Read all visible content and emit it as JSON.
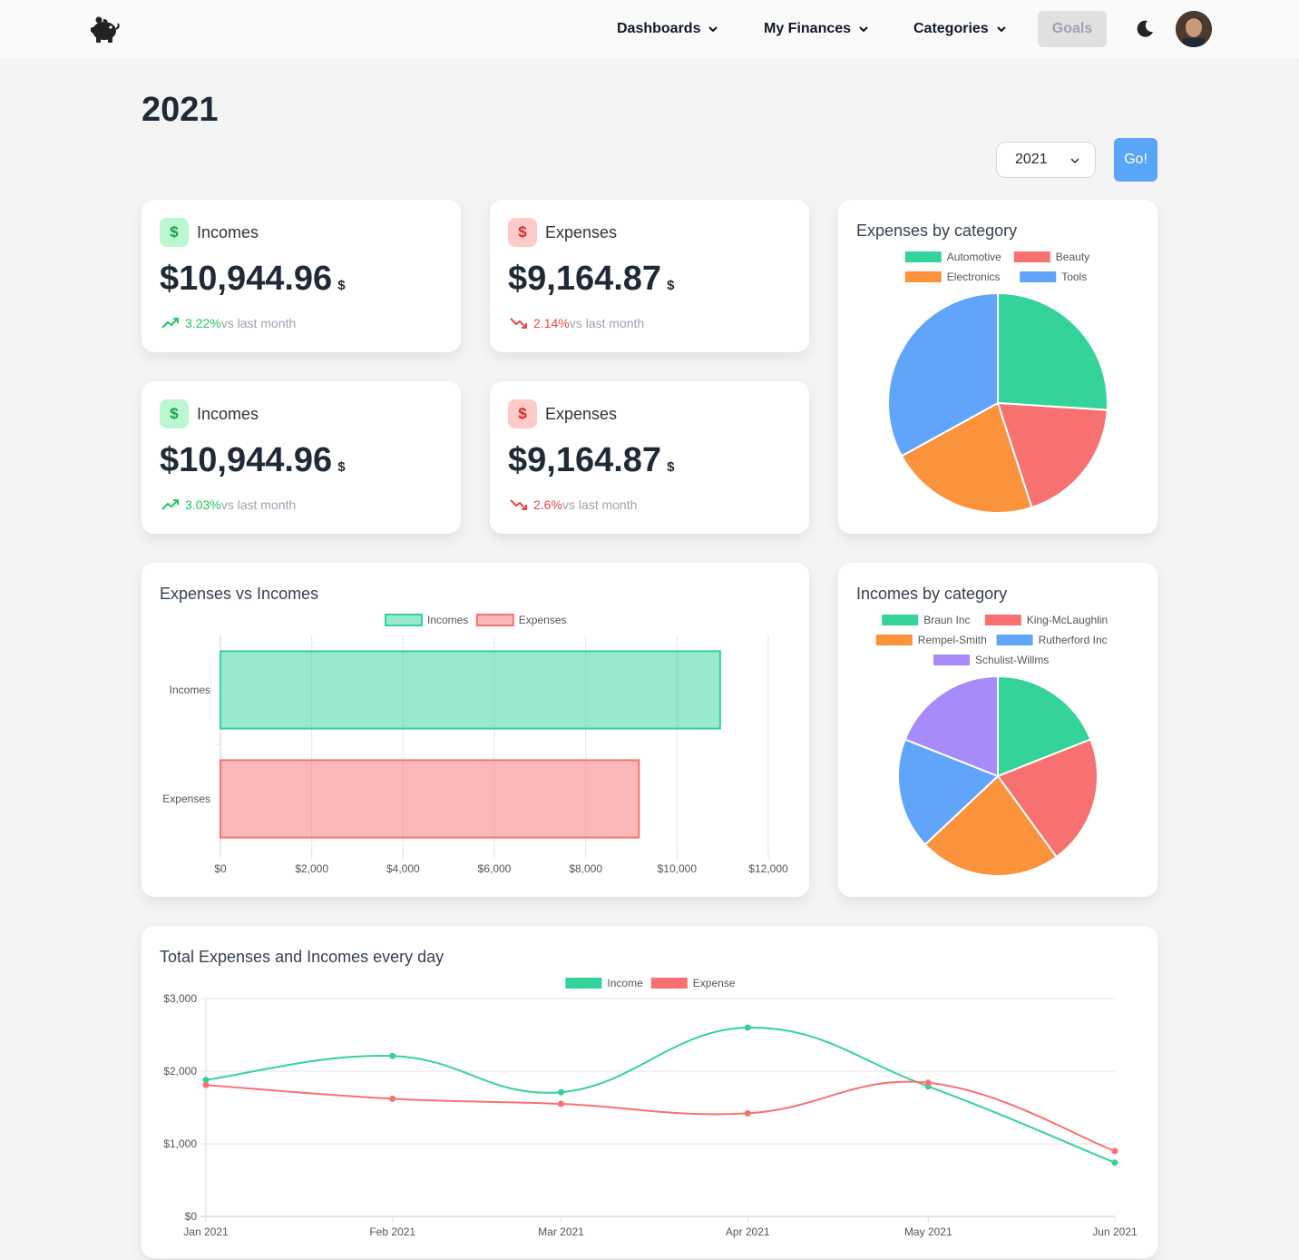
{
  "nav": {
    "logo_icon": "piggy-bank-icon",
    "items": [
      {
        "label": "Dashboards"
      },
      {
        "label": "My Finances"
      },
      {
        "label": "Categories"
      }
    ],
    "goals_label": "Goals",
    "theme_icon": "moon-icon"
  },
  "page": {
    "title": "2021",
    "year_select_value": "2021",
    "go_label": "Go!"
  },
  "stats": [
    {
      "label": "Incomes",
      "value": "$10,944.96",
      "unit": "$",
      "trend": "3.22%",
      "suffix": "vs last month",
      "direction": "up"
    },
    {
      "label": "Expenses",
      "value": "$9,164.87",
      "unit": "$",
      "trend": "2.14%",
      "suffix": "vs last month",
      "direction": "down"
    },
    {
      "label": "Incomes",
      "value": "$10,944.96",
      "unit": "$",
      "trend": "3.03%",
      "suffix": "vs last month",
      "direction": "up"
    },
    {
      "label": "Expenses",
      "value": "$9,164.87",
      "unit": "$",
      "trend": "2.6%",
      "suffix": "vs last month",
      "direction": "down"
    }
  ],
  "colors": {
    "green": "#34d399",
    "red": "#f87171",
    "orange": "#fb923c",
    "blue": "#60a5fa",
    "purple": "#a78bfa"
  },
  "chart_data": [
    {
      "type": "pie",
      "title": "Expenses by category",
      "legend": "top",
      "labels": [
        "Automotive",
        "Beauty",
        "Electronics",
        "Tools"
      ],
      "values": [
        26,
        19,
        22,
        33
      ],
      "colors": [
        "#34d399",
        "#f87171",
        "#fb923c",
        "#60a5fa"
      ]
    },
    {
      "type": "bar",
      "orientation": "horizontal",
      "title": "Expenses vs Incomes",
      "legend": "top",
      "categories": [
        "Incomes",
        "Expenses"
      ],
      "series": [
        {
          "name": "Incomes",
          "values": [
            10944.96,
            null
          ]
        },
        {
          "name": "Expenses",
          "values": [
            null,
            9164.87
          ]
        }
      ],
      "xlim": [
        0,
        12000
      ],
      "xticks": [
        "$0",
        "$2,000",
        "$4,000",
        "$6,000",
        "$8,000",
        "$10,000",
        "$12,000"
      ],
      "grid": true
    },
    {
      "type": "pie",
      "title": "Incomes by category",
      "legend": "top",
      "labels": [
        "Braun Inc",
        "King-McLaughlin",
        "Rempel-Smith",
        "Rutherford Inc",
        "Schulist-Willms"
      ],
      "values": [
        19,
        21,
        23,
        18,
        19
      ],
      "colors": [
        "#34d399",
        "#f87171",
        "#fb923c",
        "#60a5fa",
        "#a78bfa"
      ]
    },
    {
      "type": "line",
      "title": "Total Expenses and Incomes every day",
      "legend": "top",
      "x": [
        "Jan 2021",
        "Feb 2021",
        "Mar 2021",
        "Apr 2021",
        "May 2021",
        "Jun 2021"
      ],
      "x_positions": [
        0,
        31,
        59,
        90,
        120,
        151
      ],
      "series": [
        {
          "name": "Income",
          "values": [
            1880,
            2210,
            1710,
            2600,
            1790,
            740
          ],
          "color": "#34d399"
        },
        {
          "name": "Expense",
          "values": [
            1810,
            1620,
            1550,
            1420,
            1840,
            900
          ],
          "color": "#f87171"
        }
      ],
      "ylim": [
        0,
        3000
      ],
      "yticks": [
        "$0",
        "$1,000",
        "$2,000",
        "$3,000"
      ],
      "grid": true
    }
  ]
}
